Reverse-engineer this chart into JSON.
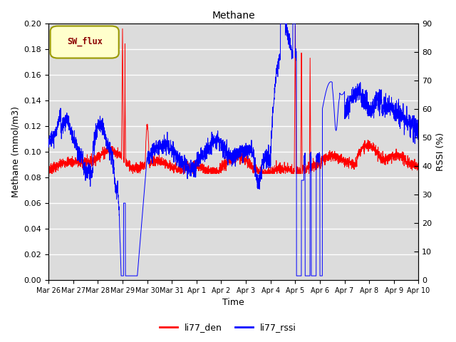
{
  "title": "Methane",
  "xlabel": "Time",
  "ylabel_left": "Methane (mmol/m3)",
  "ylabel_right": "RSSI (%)",
  "ylim_left": [
    0.0,
    0.2
  ],
  "ylim_right": [
    0,
    90
  ],
  "yticks_left": [
    0.0,
    0.02,
    0.04,
    0.06,
    0.08,
    0.1,
    0.12,
    0.14,
    0.16,
    0.18,
    0.2
  ],
  "yticks_right": [
    0,
    10,
    20,
    30,
    40,
    50,
    60,
    70,
    80,
    90
  ],
  "xtick_labels": [
    "Mar 26",
    "Mar 27",
    "Mar 28",
    "Mar 29",
    "Mar 30",
    "Mar 31",
    "Apr 1",
    "Apr 2",
    "Apr 3",
    "Apr 4",
    "Apr 5",
    "Apr 6",
    "Apr 7",
    "Apr 8",
    "Apr 9",
    "Apr 10"
  ],
  "legend_labels": [
    "li77_den",
    "li77_rssi"
  ],
  "line_colors": [
    "red",
    "blue"
  ],
  "background_color": "#dcdcdc",
  "grid_color": "white",
  "sw_flux_box_facecolor": "#ffffcc",
  "sw_flux_text_color": "#8b0000",
  "sw_flux_border_color": "#999900",
  "title_fontsize": 10,
  "axis_fontsize": 9,
  "tick_fontsize": 8,
  "legend_fontsize": 9
}
